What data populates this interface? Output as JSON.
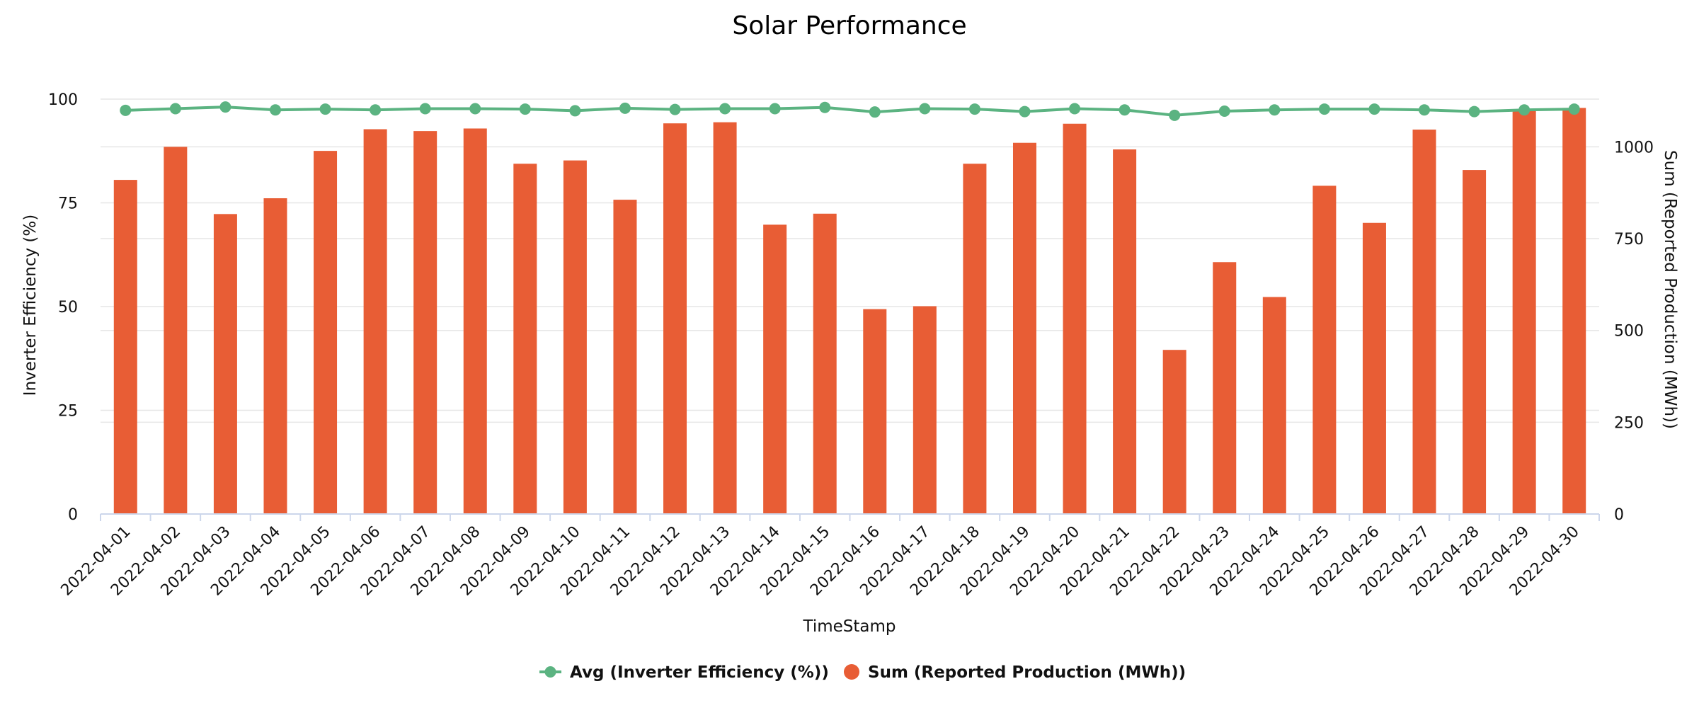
{
  "chart_data": {
    "type": "bar+line",
    "title": "Solar Performance",
    "xlabel": "TimeStamp",
    "ylabel_left": "Inverter Efficiency (%)",
    "ylabel_right": "Sum (Reported Production (MWh))",
    "ylim_left": [
      0,
      100
    ],
    "ylim_right": [
      0,
      1130
    ],
    "yticks_left": [
      "0",
      "25",
      "50",
      "75",
      "100"
    ],
    "yticks_right": [
      "0",
      "250",
      "500",
      "750",
      "1000"
    ],
    "grid": true,
    "legend_position": "bottom-center",
    "categories": [
      "2022-04-01",
      "2022-04-02",
      "2022-04-03",
      "2022-04-04",
      "2022-04-05",
      "2022-04-06",
      "2022-04-07",
      "2022-04-08",
      "2022-04-09",
      "2022-04-10",
      "2022-04-11",
      "2022-04-12",
      "2022-04-13",
      "2022-04-14",
      "2022-04-15",
      "2022-04-16",
      "2022-04-17",
      "2022-04-18",
      "2022-04-19",
      "2022-04-20",
      "2022-04-21",
      "2022-04-22",
      "2022-04-23",
      "2022-04-24",
      "2022-04-25",
      "2022-04-26",
      "2022-04-27",
      "2022-04-28",
      "2022-04-29",
      "2022-04-30"
    ],
    "series": [
      {
        "name": "Avg (Inverter Efficiency (%))",
        "type": "line",
        "axis": "left",
        "color": "#5bb381",
        "values": [
          97.3,
          97.7,
          98.1,
          97.4,
          97.6,
          97.4,
          97.7,
          97.7,
          97.6,
          97.2,
          97.8,
          97.5,
          97.7,
          97.7,
          98.0,
          96.9,
          97.7,
          97.6,
          97.0,
          97.7,
          97.4,
          96.1,
          97.1,
          97.4,
          97.6,
          97.6,
          97.4,
          97.0,
          97.4,
          97.6
        ]
      },
      {
        "name": "Sum (Reported Production (MWh))",
        "type": "bar",
        "axis": "right",
        "color": "#e85d35",
        "values": [
          910,
          1000,
          817,
          860,
          989,
          1048,
          1043,
          1050,
          954,
          963,
          856,
          1064,
          1067,
          788,
          818,
          558,
          566,
          954,
          1011,
          1063,
          993,
          447,
          686,
          591,
          894,
          793,
          1047,
          937,
          1101,
          1106
        ]
      }
    ]
  }
}
